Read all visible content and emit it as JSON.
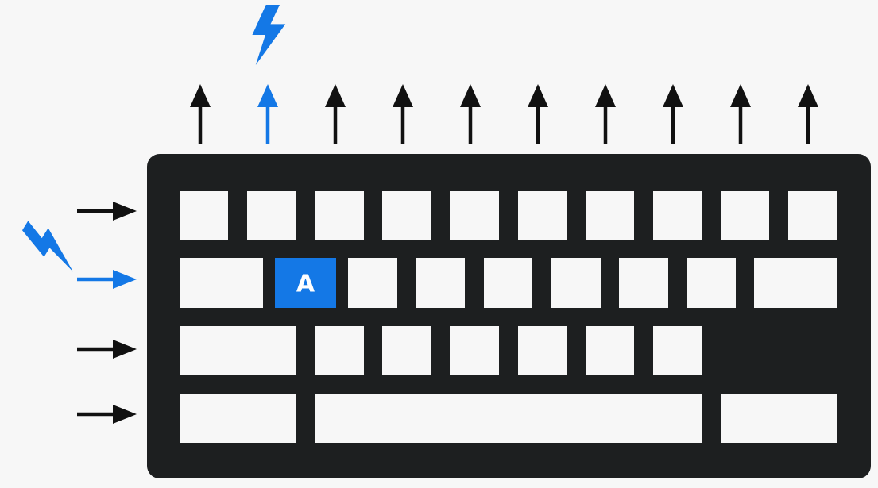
{
  "colors": {
    "background": "#f7f7f7",
    "keyboard_body": "#1d1f20",
    "key": "#f7f7f7",
    "active": "#1478e6",
    "arrow": "#111111",
    "active_label": "#ffffff"
  },
  "keyboard": {
    "rows": [
      {
        "keys": [
          {
            "label": ""
          },
          {
            "label": ""
          },
          {
            "label": ""
          },
          {
            "label": ""
          },
          {
            "label": ""
          },
          {
            "label": ""
          },
          {
            "label": ""
          },
          {
            "label": ""
          },
          {
            "label": ""
          },
          {
            "label": ""
          }
        ]
      },
      {
        "keys": [
          {
            "label": ""
          },
          {
            "label": "A",
            "active": true
          },
          {
            "label": ""
          },
          {
            "label": ""
          },
          {
            "label": ""
          },
          {
            "label": ""
          },
          {
            "label": ""
          },
          {
            "label": ""
          },
          {
            "label": ""
          }
        ]
      },
      {
        "keys": [
          {
            "label": ""
          },
          {
            "label": ""
          },
          {
            "label": ""
          },
          {
            "label": ""
          },
          {
            "label": ""
          },
          {
            "label": ""
          },
          {
            "label": ""
          }
        ]
      },
      {
        "keys": [
          {
            "label": ""
          },
          {
            "label": ""
          },
          {
            "label": ""
          }
        ]
      }
    ]
  },
  "column_lines": {
    "count": 10,
    "active_index": 1,
    "signal_icon": "lightning-bolt-icon"
  },
  "row_lines": {
    "count": 4,
    "active_index": 1,
    "signal_icon": "lightning-bolt-icon"
  }
}
